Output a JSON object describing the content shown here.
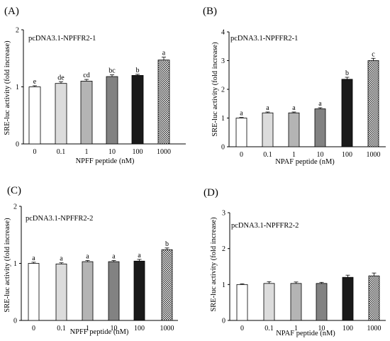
{
  "chart_data": [
    {
      "type": "bar",
      "panel_label": "(A)",
      "title": "pcDNA3.1-NPFFR2-1",
      "xlabel": "NPFF peptide (nM)",
      "ylabel": "SRE-luc activity (fold increase)",
      "ylim": [
        0,
        2
      ],
      "yticks": [
        "0",
        "1",
        "2"
      ],
      "categories": [
        "0",
        "0.1",
        "1",
        "10",
        "100",
        "1000"
      ],
      "values": [
        1.0,
        1.06,
        1.1,
        1.18,
        1.2,
        1.47
      ],
      "errors": [
        0.02,
        0.03,
        0.03,
        0.03,
        0.02,
        0.05
      ],
      "letters": [
        "e",
        "de",
        "cd",
        "bc",
        "b",
        "a"
      ]
    },
    {
      "type": "bar",
      "panel_label": "(B)",
      "title": "pcDNA3.1-NPFFR2-1",
      "xlabel": "NPAF peptide (nM)",
      "ylabel": "SRE-luc activity (fold increase)",
      "ylim": [
        0,
        4
      ],
      "yticks": [
        "0",
        "1",
        "2",
        "3",
        "4"
      ],
      "categories": [
        "0",
        "0.1",
        "1",
        "10",
        "100",
        "1000"
      ],
      "values": [
        1.0,
        1.18,
        1.18,
        1.32,
        2.35,
        3.0
      ],
      "errors": [
        0.02,
        0.03,
        0.03,
        0.04,
        0.07,
        0.08
      ],
      "letters": [
        "a",
        "a",
        "a",
        "a",
        "b",
        "c"
      ]
    },
    {
      "type": "bar",
      "panel_label": "(C)",
      "title": "pcDNA3.1-NPFFR2-2",
      "xlabel": "NPFF peptide (nM)",
      "ylabel": "SRE-luc activity (fold increase)",
      "ylim": [
        0,
        2
      ],
      "yticks": [
        "0",
        "1",
        "2"
      ],
      "categories": [
        "0",
        "0.1",
        "1",
        "10",
        "100",
        "1000"
      ],
      "values": [
        1.0,
        0.99,
        1.03,
        1.03,
        1.04,
        1.24
      ],
      "errors": [
        0.02,
        0.02,
        0.02,
        0.02,
        0.03,
        0.03
      ],
      "letters": [
        "a",
        "a",
        "a",
        "a",
        "a",
        "b"
      ]
    },
    {
      "type": "bar",
      "panel_label": "(D)",
      "title": "pcDNA3.1-NPFFR2-2",
      "xlabel": "NPAF peptide (nM)",
      "ylabel": "SRE-luc activity (fold increase)",
      "ylim": [
        0,
        3
      ],
      "yticks": [
        "0",
        "1",
        "2",
        "3"
      ],
      "categories": [
        "0",
        "0.1",
        "1",
        "10",
        "100",
        "1000"
      ],
      "values": [
        1.0,
        1.03,
        1.03,
        1.03,
        1.2,
        1.24
      ],
      "errors": [
        0.02,
        0.05,
        0.04,
        0.03,
        0.06,
        0.08
      ],
      "letters": [
        "",
        "",
        "",
        "",
        "",
        ""
      ]
    }
  ],
  "bar_styles": [
    {
      "fill": "#ffffff",
      "pattern": "none"
    },
    {
      "fill": "#dcdcdc",
      "pattern": "none"
    },
    {
      "fill": "#b4b4b4",
      "pattern": "none"
    },
    {
      "fill": "#828282",
      "pattern": "none"
    },
    {
      "fill": "#1a1a1a",
      "pattern": "none"
    },
    {
      "fill": "#ffffff",
      "pattern": "checker"
    }
  ]
}
